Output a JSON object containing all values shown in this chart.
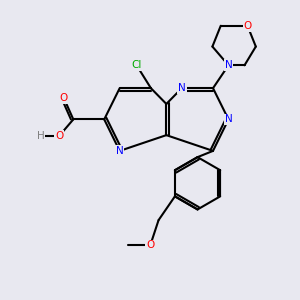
{
  "background_color": "#e8e8f0",
  "bond_color": "#000000",
  "bond_width": 1.5,
  "atom_colors": {
    "N": "#0000ff",
    "O": "#ff0000",
    "Cl": "#00aa00",
    "H": "#808080"
  },
  "font_size": 7.5
}
